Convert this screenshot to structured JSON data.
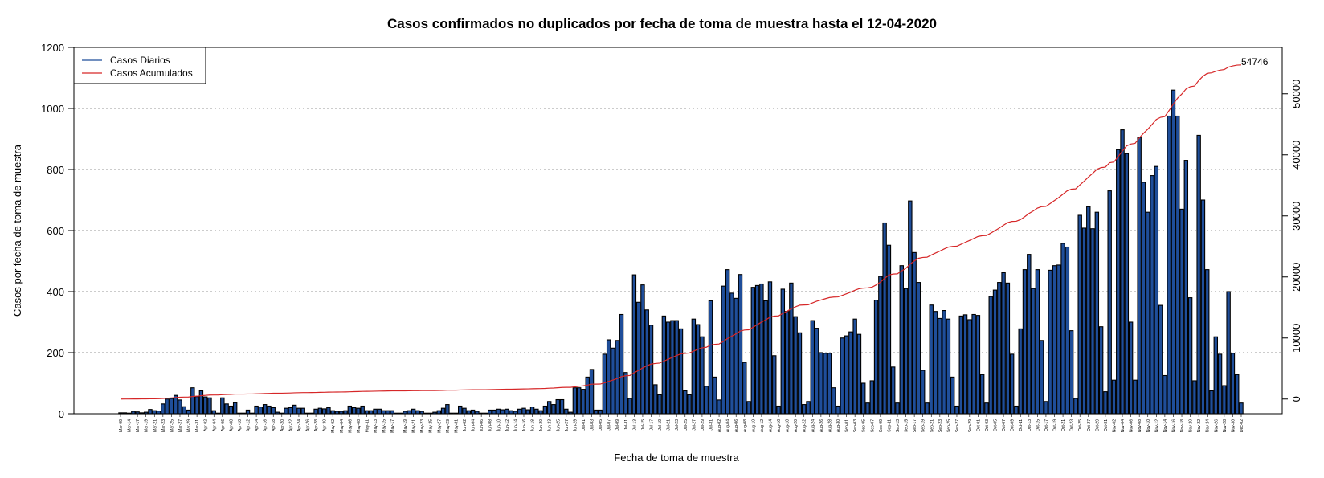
{
  "chart_data": {
    "type": "bar",
    "title": "Casos confirmados no duplicados por fecha de toma de muestra hasta el 12-04-2020",
    "xlabel": "Fecha de toma de muestra",
    "ylabel": "Casos por fecha de toma de muestra",
    "ylim": [
      0,
      1200
    ],
    "y_ticks": [
      0,
      200,
      400,
      600,
      800,
      1000,
      1200
    ],
    "y2lim": [
      -2400,
      57600
    ],
    "y2_ticks": [
      0,
      10000,
      20000,
      30000,
      40000,
      50000
    ],
    "grid": "horizontal-dotted",
    "legend_position": "top-left",
    "start_date": "2020-03-09",
    "series": [
      {
        "name": "Casos Diarios",
        "type": "bar",
        "color": "#1f4e9a",
        "values": [
          3,
          3,
          2,
          8,
          6,
          3,
          5,
          14,
          10,
          9,
          32,
          48,
          50,
          60,
          45,
          23,
          12,
          85,
          56,
          75,
          55,
          52,
          10,
          2,
          52,
          32,
          25,
          36,
          2,
          2,
          12,
          2,
          25,
          22,
          30,
          25,
          20,
          5,
          2,
          18,
          20,
          28,
          18,
          18,
          2,
          2,
          15,
          18,
          16,
          20,
          10,
          8,
          8,
          10,
          25,
          20,
          18,
          25,
          10,
          10,
          15,
          15,
          10,
          10,
          10,
          2,
          2,
          8,
          10,
          15,
          10,
          8,
          2,
          2,
          5,
          10,
          18,
          30,
          2,
          2,
          25,
          18,
          10,
          12,
          8,
          2,
          2,
          12,
          12,
          15,
          13,
          15,
          10,
          8,
          15,
          18,
          13,
          22,
          15,
          10,
          25,
          40,
          30,
          46,
          46,
          15,
          5,
          85,
          85,
          80,
          120,
          145,
          12,
          12,
          195,
          242,
          215,
          240,
          325,
          135,
          50,
          455,
          365,
          422,
          340,
          290,
          95,
          62,
          320,
          300,
          305,
          305,
          278,
          75,
          62,
          310,
          292,
          252,
          90,
          370,
          120,
          45,
          418,
          472,
          395,
          378,
          456,
          168,
          40,
          414,
          420,
          425,
          370,
          432,
          190,
          25,
          408,
          335,
          428,
          318,
          265,
          30,
          40,
          305,
          280,
          200,
          198,
          198,
          85,
          25,
          248,
          255,
          268,
          310,
          260,
          100,
          35,
          108,
          372,
          450,
          625,
          552,
          153,
          35,
          485,
          410,
          697,
          528,
          430,
          142,
          35,
          356,
          335,
          312,
          338,
          310,
          120,
          25,
          320,
          324,
          308,
          325,
          322,
          128,
          35,
          384,
          405,
          430,
          462,
          428,
          195,
          25,
          278,
          472,
          522,
          410,
          472,
          240,
          40,
          470,
          485,
          487,
          558,
          546,
          272,
          50,
          650,
          608,
          678,
          606,
          660,
          285,
          72,
          730,
          110,
          865,
          930,
          852,
          300,
          110,
          905,
          758,
          660,
          780,
          810,
          355,
          125,
          975,
          1060,
          975,
          670,
          830,
          380,
          108,
          912,
          700,
          472,
          75,
          252,
          195,
          92,
          400,
          198,
          128,
          35
        ],
        "note": "mapped on left axis"
      },
      {
        "name": "Casos Acumulados",
        "type": "line",
        "color": "#d62728",
        "end_label": "54746",
        "note": "cumulative sum of daily values, mapped on right axis"
      }
    ],
    "x_tick_labels": [
      "Mar-09",
      "Mar-14",
      "Mar-17",
      "Mar-19",
      "Mar-21",
      "Mar-23",
      "Mar-25",
      "Mar-27",
      "Mar-29",
      "Mar-31",
      "Apr-02",
      "Apr-04",
      "Apr-06",
      "Apr-08",
      "Apr-10",
      "Apr-12",
      "Apr-14",
      "Apr-16",
      "Apr-18",
      "Apr-20",
      "Apr-22",
      "Apr-24",
      "Apr-26",
      "Apr-28",
      "Apr-30",
      "May-02",
      "May-04",
      "May-06",
      "May-08",
      "May-11",
      "May-13",
      "May-15",
      "May-17",
      "May-19",
      "May-21",
      "May-23",
      "May-25",
      "May-27",
      "May-29",
      "May-31",
      "Jun-02",
      "Jun-04",
      "Jun-06",
      "Jun-08",
      "Jun-10",
      "Jun-12",
      "Jun-14",
      "Jun-16",
      "Jun-18",
      "Jun-20",
      "Jun-23",
      "Jun-25",
      "Jun-27",
      "Jun-29",
      "Jul-01",
      "Jul-03",
      "Jul-05",
      "Jul-07",
      "Jul-09",
      "Jul-11",
      "Jul-13",
      "Jul-15",
      "Jul-17",
      "Jul-19",
      "Jul-21",
      "Jul-23",
      "Jul-25",
      "Jul-27",
      "Jul-29",
      "Jul-31",
      "Aug-02",
      "Aug-04",
      "Aug-06",
      "Aug-08",
      "Aug-10",
      "Aug-12",
      "Aug-14",
      "Aug-16",
      "Aug-18",
      "Aug-20",
      "Aug-22",
      "Aug-24",
      "Aug-26",
      "Aug-28",
      "Aug-30",
      "Sep-01",
      "Sep-03",
      "Sep-05",
      "Sep-07",
      "Sep-09",
      "Sep-11",
      "Sep-13",
      "Sep-15",
      "Sep-17",
      "Sep-19",
      "Sep-21",
      "Sep-23",
      "Sep-25",
      "Sep-27",
      "Sep-29",
      "Oct-01",
      "Oct-03",
      "Oct-05",
      "Oct-07",
      "Oct-09",
      "Oct-11",
      "Oct-13",
      "Oct-15",
      "Oct-17",
      "Oct-19",
      "Oct-21",
      "Oct-23",
      "Oct-25",
      "Oct-27",
      "Oct-29",
      "Oct-31",
      "Nov-02",
      "Nov-04",
      "Nov-06",
      "Nov-08",
      "Nov-10",
      "Nov-12",
      "Nov-14",
      "Nov-16",
      "Nov-18",
      "Nov-20",
      "Nov-22",
      "Nov-24",
      "Nov-26",
      "Nov-28",
      "Nov-30",
      "Dec-02"
    ]
  }
}
